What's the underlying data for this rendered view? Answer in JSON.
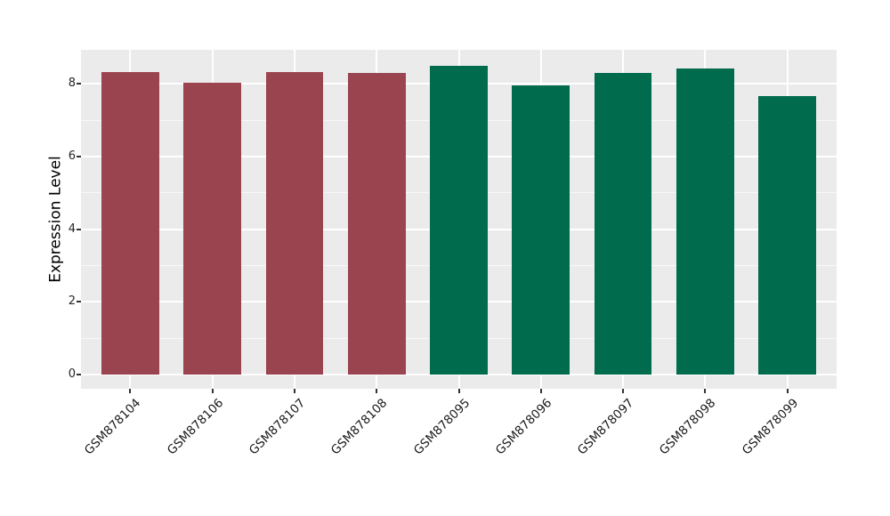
{
  "chart_data": {
    "type": "bar",
    "title": "",
    "ylabel": "Expression Level",
    "xlabel": "",
    "ylim": [
      0,
      8.93
    ],
    "yticks": [
      0,
      2,
      4,
      6,
      8
    ],
    "minor_gridlines": [
      1,
      3,
      5,
      7
    ],
    "grid": true,
    "legend_position": "none",
    "categories": [
      "GSM878104",
      "GSM878106",
      "GSM878107",
      "GSM878108",
      "GSM878095",
      "GSM878096",
      "GSM878097",
      "GSM878098",
      "GSM878099"
    ],
    "bars": [
      {
        "label": "GSM878104",
        "value": 8.33,
        "group": "group1"
      },
      {
        "label": "GSM878106",
        "value": 8.02,
        "group": "group1"
      },
      {
        "label": "GSM878107",
        "value": 8.33,
        "group": "group1"
      },
      {
        "label": "GSM878108",
        "value": 8.31,
        "group": "group1"
      },
      {
        "label": "GSM878095",
        "value": 8.5,
        "group": "group2"
      },
      {
        "label": "GSM878096",
        "value": 7.97,
        "group": "group2"
      },
      {
        "label": "GSM878097",
        "value": 8.31,
        "group": "group2"
      },
      {
        "label": "GSM878098",
        "value": 8.43,
        "group": "group2"
      },
      {
        "label": "GSM878099",
        "value": 7.66,
        "group": "group2"
      }
    ],
    "colors": {
      "group1": "#9A4450",
      "group2": "#006B4D",
      "panel_background": "#EBEBEB",
      "figure_background": "#FFFFFF",
      "gridline": "#FFFFFF",
      "tick_text": "#262626",
      "tick_mark": "#333333",
      "axis_title_text": "#000000"
    }
  }
}
